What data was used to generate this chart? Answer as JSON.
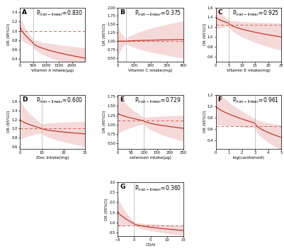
{
  "panels": [
    {
      "label": "A",
      "p_text": "P",
      "p_sub": "non-linear",
      "p_val": "=0.830",
      "xlabel": "Vitamin A intake(μg)",
      "ylabel": "OR (95%CI)",
      "xmin": 0,
      "xmax": 2500,
      "ymin": 0.35,
      "ymax": 1.5,
      "ref_x": 500,
      "dashed_y": 1.0,
      "curve_start_y": 1.1,
      "curve_end_y": 0.42,
      "curve_mid_y": 0.75,
      "ci_start_half": 0.25,
      "ci_end_half": 0.22,
      "ci_mid_half": 0.08,
      "xticks": [
        0,
        500,
        1000,
        1500,
        2000
      ]
    },
    {
      "label": "B",
      "p_text": "P",
      "p_sub": "non-linear",
      "p_val": "=0.375",
      "xlabel": "Vitamin C intake(mg)",
      "ylabel": "OR (95%CI)",
      "xmin": 0,
      "xmax": 400,
      "ymin": 0.4,
      "ymax": 2.0,
      "ref_x": 50,
      "dashed_y": 1.0,
      "curve_start_y": 1.0,
      "curve_end_y": 1.05,
      "curve_mid_y": 1.0,
      "ci_start_half": 0.45,
      "ci_end_half": 0.55,
      "ci_mid_half": 0.05,
      "xticks": [
        0,
        100,
        200,
        300,
        400
      ]
    },
    {
      "label": "C",
      "p_text": "P",
      "p_sub": "non-linear",
      "p_val": "=0.925",
      "xlabel": "Vitamin E intake(mg)",
      "ylabel": "OR (95%CI)",
      "xmin": 0,
      "xmax": 25,
      "ymin": 0.5,
      "ymax": 1.6,
      "ref_x": 5,
      "dashed_y": 1.25,
      "curve_start_y": 1.4,
      "curve_end_y": 1.0,
      "curve_mid_y": 1.28,
      "ci_start_half": 0.25,
      "ci_end_half": 0.28,
      "ci_mid_half": 0.06,
      "xticks": [
        0,
        5,
        10,
        15,
        20,
        25
      ]
    },
    {
      "label": "D",
      "p_text": "P",
      "p_sub": "non-linear",
      "p_val": "=0.600",
      "xlabel": "Zinc intake(mg)",
      "ylabel": "OR (95%CI)",
      "xmin": 0,
      "xmax": 30,
      "ymin": 0.55,
      "ymax": 1.75,
      "ref_x": 10,
      "dashed_y": 1.0,
      "curve_start_y": 1.2,
      "curve_end_y": 0.88,
      "curve_mid_y": 1.0,
      "ci_start_half": 0.45,
      "ci_end_half": 0.28,
      "ci_mid_half": 0.1,
      "xticks": [
        0,
        10,
        20,
        30
      ]
    },
    {
      "label": "E",
      "p_text": "P",
      "p_sub": "non-linear",
      "p_val": "=0.729",
      "xlabel": "selenium intake(μg)",
      "ylabel": "OR (95%CI)",
      "xmin": 0,
      "xmax": 250,
      "ymin": 0.35,
      "ymax": 1.8,
      "ref_x": 100,
      "dashed_y": 1.1,
      "curve_start_y": 1.3,
      "curve_end_y": 0.9,
      "curve_mid_y": 1.1,
      "ci_start_half": 0.55,
      "ci_end_half": 0.35,
      "ci_mid_half": 0.08,
      "xticks": [
        0,
        50,
        100,
        150,
        200,
        250
      ]
    },
    {
      "label": "F",
      "p_text": "P",
      "p_sub": "non-linear",
      "p_val": "=0.961",
      "xlabel": "log(carotenoid)",
      "ylabel": "OR (95%CI)",
      "xmin": 0,
      "xmax": 5,
      "ymin": 0.25,
      "ymax": 1.2,
      "ref_x": 3,
      "dashed_y": 0.65,
      "curve_start_y": 1.0,
      "curve_end_y": 0.45,
      "curve_mid_y": 0.7,
      "ci_start_half": 0.32,
      "ci_end_half": 0.22,
      "ci_mid_half": 0.08,
      "xticks": [
        0,
        1,
        2,
        3,
        4,
        5
      ]
    },
    {
      "label": "G",
      "p_text": "P",
      "p_sub": "non-linear",
      "p_val": "=0.360",
      "xlabel": "CDAI",
      "ylabel": "OR (95%CI)",
      "xmin": -5,
      "xmax": 15,
      "ymin": 0.35,
      "ymax": 3.0,
      "ref_x": 0,
      "dashed_y": 0.85,
      "curve_start_y": 1.55,
      "curve_end_y": 0.62,
      "curve_mid_y": 0.95,
      "ci_start_half": 0.75,
      "ci_end_half": 0.25,
      "ci_mid_half": 0.08,
      "xticks": [
        -5,
        0,
        5,
        10,
        15
      ]
    }
  ],
  "line_color": "#c0392b",
  "fill_color": "#e8a0a0",
  "fill_alpha": 0.4,
  "ref_line_color": "#c0392b",
  "vline_color": "#aaaaaa",
  "bg_color": "#ffffff"
}
